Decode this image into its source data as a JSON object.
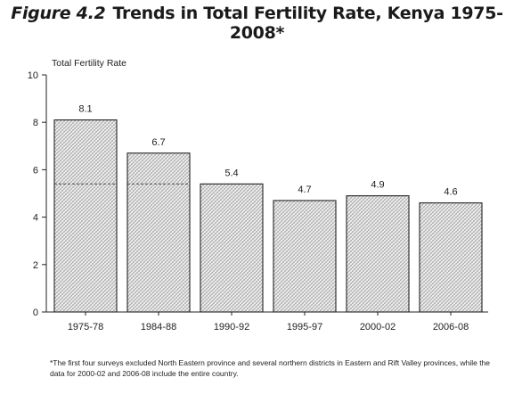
{
  "figure": {
    "number": "Figure 4.2",
    "title": "Trends in Total Fertility Rate, Kenya 1975-2008*"
  },
  "chart_data": {
    "type": "bar",
    "title": "Trends in Total Fertility Rate, Kenya 1975-2008*",
    "ylabel": "Total Fertility Rate",
    "xlabel": "",
    "categories": [
      "1975-78",
      "1984-88",
      "1990-92",
      "1995-97",
      "2000-02",
      "2006-08"
    ],
    "values": [
      8.1,
      6.7,
      5.4,
      4.7,
      4.9,
      4.6
    ],
    "data_labels": [
      "8.1",
      "6.7",
      "5.4",
      "4.7",
      "4.9",
      "4.6"
    ],
    "ylim": [
      0,
      10
    ],
    "yticks": [
      0,
      2,
      4,
      6,
      8,
      10
    ],
    "grid": false,
    "legend": "none",
    "bar_pattern": "crosshatch",
    "bar_stroke": "#222222",
    "bar_fill": "#e6e6e6",
    "reference_line": {
      "value": 5.4,
      "style": "dashed",
      "categories": [
        "1975-78",
        "1984-88"
      ]
    }
  },
  "footnote": "*The first four surveys excluded North Eastern province and several northern districts in Eastern and Rift Valley provinces, while the data for 2000-02 and 2006-08 include the entire country."
}
